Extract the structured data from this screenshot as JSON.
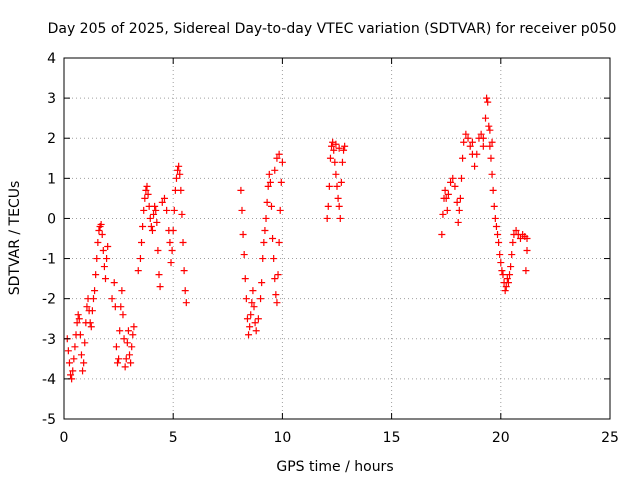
{
  "chart_data": {
    "type": "scatter",
    "title": "Day 205 of 2025, Sidereal Day-to-day VTEC variation (SDTVAR) for receiver p050",
    "xlabel": "GPS time / hours",
    "ylabel": "SDTVAR / TECUs",
    "xlim": [
      0,
      25
    ],
    "ylim": [
      -5,
      4
    ],
    "xticks": [
      "0",
      "5",
      "10",
      "15",
      "20",
      "25"
    ],
    "yticks": [
      "-5",
      "-4",
      "-3",
      "-2",
      "-1",
      "0",
      "1",
      "2",
      "3",
      "4"
    ],
    "grid": true,
    "marker": "plus",
    "series": [
      {
        "name": "p050",
        "color": "#ff0000",
        "points": [
          [
            0.15,
            -3.0
          ],
          [
            0.2,
            -3.3
          ],
          [
            0.25,
            -3.6
          ],
          [
            0.3,
            -3.9
          ],
          [
            0.35,
            -4.0
          ],
          [
            0.4,
            -3.8
          ],
          [
            0.45,
            -3.5
          ],
          [
            0.5,
            -3.2
          ],
          [
            0.55,
            -2.9
          ],
          [
            0.6,
            -2.6
          ],
          [
            0.65,
            -2.4
          ],
          [
            0.7,
            -2.5
          ],
          [
            0.75,
            -2.9
          ],
          [
            0.8,
            -3.4
          ],
          [
            0.85,
            -3.8
          ],
          [
            0.9,
            -3.6
          ],
          [
            0.95,
            -3.1
          ],
          [
            1.0,
            -2.6
          ],
          [
            1.05,
            -2.2
          ],
          [
            1.1,
            -2.0
          ],
          [
            1.15,
            -2.3
          ],
          [
            1.2,
            -2.6
          ],
          [
            1.25,
            -2.7
          ],
          [
            1.3,
            -2.3
          ],
          [
            1.35,
            -2.0
          ],
          [
            1.4,
            -1.8
          ],
          [
            1.45,
            -1.4
          ],
          [
            1.5,
            -1.0
          ],
          [
            1.55,
            -0.6
          ],
          [
            1.6,
            -0.3
          ],
          [
            1.65,
            -0.2
          ],
          [
            1.7,
            -0.15
          ],
          [
            1.75,
            -0.4
          ],
          [
            1.8,
            -0.8
          ],
          [
            1.85,
            -1.2
          ],
          [
            1.9,
            -1.5
          ],
          [
            1.95,
            -1.0
          ],
          [
            2.0,
            -0.7
          ],
          [
            2.2,
            -2.0
          ],
          [
            2.3,
            -1.6
          ],
          [
            2.35,
            -2.2
          ],
          [
            2.4,
            -3.2
          ],
          [
            2.45,
            -3.6
          ],
          [
            2.5,
            -3.5
          ],
          [
            2.55,
            -2.8
          ],
          [
            2.6,
            -2.2
          ],
          [
            2.65,
            -1.8
          ],
          [
            2.7,
            -2.4
          ],
          [
            2.75,
            -3.0
          ],
          [
            2.8,
            -3.7
          ],
          [
            2.85,
            -3.5
          ],
          [
            2.9,
            -3.1
          ],
          [
            2.95,
            -2.8
          ],
          [
            3.0,
            -3.4
          ],
          [
            3.05,
            -3.6
          ],
          [
            3.1,
            -3.2
          ],
          [
            3.15,
            -2.9
          ],
          [
            3.2,
            -2.7
          ],
          [
            3.4,
            -1.3
          ],
          [
            3.5,
            -1.0
          ],
          [
            3.55,
            -0.6
          ],
          [
            3.6,
            -0.2
          ],
          [
            3.65,
            0.2
          ],
          [
            3.7,
            0.5
          ],
          [
            3.75,
            0.7
          ],
          [
            3.8,
            0.8
          ],
          [
            3.85,
            0.6
          ],
          [
            3.9,
            0.3
          ],
          [
            3.95,
            0.0
          ],
          [
            4.0,
            -0.2
          ],
          [
            4.05,
            -0.3
          ],
          [
            4.1,
            0.1
          ],
          [
            4.15,
            0.3
          ],
          [
            4.2,
            0.2
          ],
          [
            4.25,
            -0.1
          ],
          [
            4.3,
            -0.8
          ],
          [
            4.35,
            -1.4
          ],
          [
            4.4,
            -1.7
          ],
          [
            4.5,
            0.4
          ],
          [
            4.6,
            0.5
          ],
          [
            4.7,
            0.2
          ],
          [
            4.8,
            -0.3
          ],
          [
            4.85,
            -0.6
          ],
          [
            4.9,
            -1.1
          ],
          [
            4.95,
            -0.8
          ],
          [
            5.0,
            -0.3
          ],
          [
            5.05,
            0.2
          ],
          [
            5.1,
            0.7
          ],
          [
            5.15,
            1.0
          ],
          [
            5.2,
            1.2
          ],
          [
            5.25,
            1.3
          ],
          [
            5.3,
            1.1
          ],
          [
            5.35,
            0.7
          ],
          [
            5.4,
            0.1
          ],
          [
            5.45,
            -0.6
          ],
          [
            5.5,
            -1.3
          ],
          [
            5.55,
            -1.8
          ],
          [
            5.6,
            -2.1
          ],
          [
            8.1,
            0.7
          ],
          [
            8.15,
            0.2
          ],
          [
            8.2,
            -0.4
          ],
          [
            8.25,
            -0.9
          ],
          [
            8.3,
            -1.5
          ],
          [
            8.35,
            -2.0
          ],
          [
            8.4,
            -2.5
          ],
          [
            8.45,
            -2.9
          ],
          [
            8.5,
            -2.7
          ],
          [
            8.55,
            -2.4
          ],
          [
            8.6,
            -2.1
          ],
          [
            8.65,
            -1.8
          ],
          [
            8.7,
            -2.2
          ],
          [
            8.75,
            -2.6
          ],
          [
            8.8,
            -2.8
          ],
          [
            8.9,
            -2.5
          ],
          [
            9.0,
            -2.0
          ],
          [
            9.05,
            -1.6
          ],
          [
            9.1,
            -1.0
          ],
          [
            9.15,
            -0.6
          ],
          [
            9.2,
            -0.3
          ],
          [
            9.25,
            0.0
          ],
          [
            9.3,
            0.4
          ],
          [
            9.35,
            0.8
          ],
          [
            9.4,
            1.1
          ],
          [
            9.45,
            0.9
          ],
          [
            9.5,
            0.3
          ],
          [
            9.55,
            -0.5
          ],
          [
            9.6,
            -1.0
          ],
          [
            9.65,
            -1.5
          ],
          [
            9.7,
            -1.9
          ],
          [
            9.75,
            -2.1
          ],
          [
            9.8,
            -1.4
          ],
          [
            9.85,
            -0.6
          ],
          [
            9.9,
            0.2
          ],
          [
            9.95,
            0.9
          ],
          [
            10.0,
            1.4
          ],
          [
            9.75,
            1.5
          ],
          [
            9.85,
            1.6
          ],
          [
            9.65,
            1.2
          ],
          [
            12.05,
            0.0
          ],
          [
            12.1,
            0.3
          ],
          [
            12.15,
            0.8
          ],
          [
            12.2,
            1.5
          ],
          [
            12.25,
            1.8
          ],
          [
            12.3,
            1.9
          ],
          [
            12.35,
            1.7
          ],
          [
            12.4,
            1.4
          ],
          [
            12.45,
            1.1
          ],
          [
            12.5,
            0.8
          ],
          [
            12.55,
            0.5
          ],
          [
            12.6,
            0.3
          ],
          [
            12.65,
            0.0
          ],
          [
            12.7,
            0.9
          ],
          [
            12.75,
            1.4
          ],
          [
            12.8,
            1.7
          ],
          [
            12.85,
            1.8
          ],
          [
            12.6,
            1.75
          ],
          [
            12.45,
            1.85
          ],
          [
            17.3,
            -0.4
          ],
          [
            17.35,
            0.1
          ],
          [
            17.4,
            0.5
          ],
          [
            17.45,
            0.7
          ],
          [
            17.5,
            0.5
          ],
          [
            17.55,
            0.2
          ],
          [
            17.6,
            0.6
          ],
          [
            17.7,
            0.9
          ],
          [
            17.8,
            1.0
          ],
          [
            17.9,
            0.8
          ],
          [
            18.0,
            0.4
          ],
          [
            18.05,
            -0.1
          ],
          [
            18.1,
            0.2
          ],
          [
            18.15,
            0.5
          ],
          [
            18.2,
            1.0
          ],
          [
            18.25,
            1.5
          ],
          [
            18.3,
            1.9
          ],
          [
            18.4,
            2.1
          ],
          [
            18.5,
            2.0
          ],
          [
            18.6,
            1.8
          ],
          [
            18.7,
            1.6
          ],
          [
            18.8,
            1.3
          ],
          [
            18.9,
            1.6
          ],
          [
            19.0,
            2.0
          ],
          [
            19.1,
            2.1
          ],
          [
            19.2,
            2.0
          ],
          [
            19.3,
            2.5
          ],
          [
            19.35,
            3.0
          ],
          [
            19.4,
            2.9
          ],
          [
            19.45,
            2.3
          ],
          [
            19.5,
            1.8
          ],
          [
            19.55,
            1.5
          ],
          [
            19.6,
            1.1
          ],
          [
            19.65,
            0.7
          ],
          [
            19.7,
            0.3
          ],
          [
            19.75,
            0.0
          ],
          [
            19.8,
            -0.2
          ],
          [
            19.85,
            -0.4
          ],
          [
            19.9,
            -0.6
          ],
          [
            19.95,
            -0.9
          ],
          [
            20.0,
            -1.1
          ],
          [
            20.05,
            -1.3
          ],
          [
            20.1,
            -1.4
          ],
          [
            20.15,
            -1.6
          ],
          [
            20.2,
            -1.8
          ],
          [
            20.25,
            -1.7
          ],
          [
            20.3,
            -1.5
          ],
          [
            20.35,
            -1.6
          ],
          [
            20.4,
            -1.4
          ],
          [
            20.45,
            -1.2
          ],
          [
            20.5,
            -0.9
          ],
          [
            20.55,
            -0.6
          ],
          [
            20.6,
            -0.4
          ],
          [
            20.7,
            -0.3
          ],
          [
            20.8,
            -0.4
          ],
          [
            20.9,
            -0.5
          ],
          [
            21.0,
            -0.4
          ],
          [
            21.1,
            -0.45
          ],
          [
            21.2,
            -0.5
          ],
          [
            21.15,
            -1.3
          ],
          [
            21.2,
            -0.8
          ],
          [
            19.2,
            1.8
          ],
          [
            19.5,
            2.2
          ],
          [
            19.6,
            1.9
          ],
          [
            18.7,
            1.9
          ]
        ]
      }
    ]
  }
}
